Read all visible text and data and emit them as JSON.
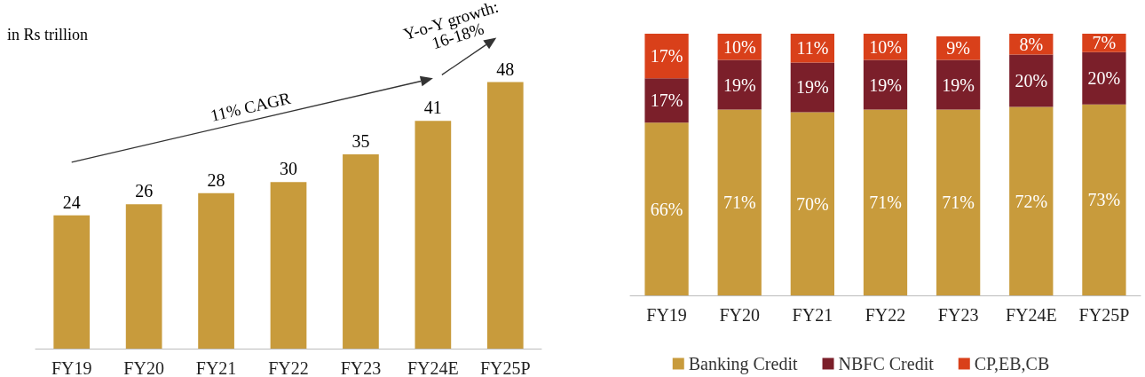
{
  "chart_data": [
    {
      "type": "bar",
      "categories": [
        "FY19",
        "FY20",
        "FY21",
        "FY22",
        "FY23",
        "FY24E",
        "FY25P"
      ],
      "values": [
        24,
        26,
        28,
        30,
        35,
        41,
        48
      ],
      "color": "#c89b3c",
      "data_labels": true,
      "tick_labels": "x",
      "annotations": [
        "in Rs trillion",
        "11% CAGR",
        "Y-o-Y growth: 16-18%"
      ]
    },
    {
      "type": "bar",
      "stacked": true,
      "categories": [
        "FY19",
        "FY20",
        "FY21",
        "FY22",
        "FY23",
        "FY24E",
        "FY25P"
      ],
      "legend": "bottom",
      "tick_labels": "x",
      "series": [
        {
          "name": "Banking Credit",
          "color": "#c89b3c",
          "values": [
            66,
            71,
            70,
            71,
            71,
            72,
            73
          ],
          "value_labels": [
            "66%",
            "71%",
            "70%",
            "71%",
            "71%",
            "72%",
            "73%"
          ]
        },
        {
          "name": "NBFC Credit",
          "color": "#7b1f2a",
          "values": [
            17,
            19,
            19,
            19,
            19,
            20,
            20
          ],
          "value_labels": [
            "17%",
            "19%",
            "19%",
            "19%",
            "19%",
            "20%",
            "20%"
          ]
        },
        {
          "name": "CP,EB,CB",
          "color": "#d9401a",
          "values": [
            17,
            10,
            11,
            10,
            9,
            8,
            7
          ],
          "value_labels": [
            "17%",
            "10%",
            "11%",
            "10%",
            "9%",
            "8%",
            "7%"
          ]
        }
      ]
    }
  ]
}
